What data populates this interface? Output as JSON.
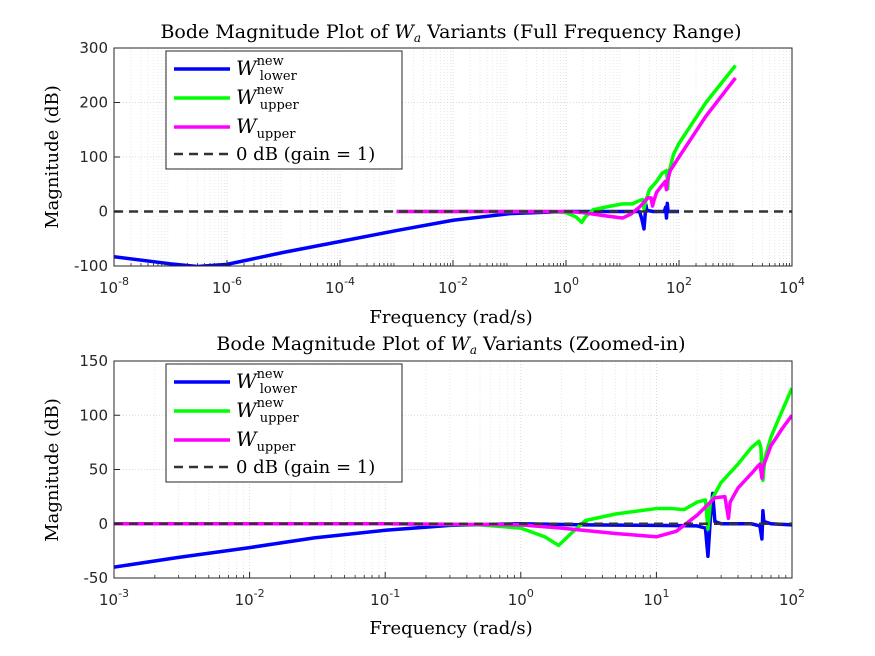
{
  "chart_data": [
    {
      "type": "line",
      "title": "Bode Magnitude Plot of W_a Variants (Full Frequency Range)",
      "title_parts": [
        "Bode Magnitude Plot of ",
        "W",
        "a",
        " Variants (Full Frequency Range)"
      ],
      "xlabel": "Frequency (rad/s)",
      "ylabel": "Magnitude (dB)",
      "xscale": "log",
      "xlim": [
        1e-08,
        10000.0
      ],
      "ylim": [
        -100,
        300
      ],
      "xticks": [
        {
          "v": 1e-08,
          "base": "10",
          "exp": "-8"
        },
        {
          "v": 1e-06,
          "base": "10",
          "exp": "-6"
        },
        {
          "v": 0.0001,
          "base": "10",
          "exp": "-4"
        },
        {
          "v": 0.01,
          "base": "10",
          "exp": "-2"
        },
        {
          "v": 1,
          "base": "10",
          "exp": "0"
        },
        {
          "v": 100,
          "base": "10",
          "exp": "2"
        },
        {
          "v": 10000.0,
          "base": "10",
          "exp": "4"
        }
      ],
      "yticks": [
        {
          "v": -100,
          "label": "-100"
        },
        {
          "v": 0,
          "label": "0"
        },
        {
          "v": 100,
          "label": "100"
        },
        {
          "v": 200,
          "label": "200"
        },
        {
          "v": 300,
          "label": "300"
        }
      ],
      "grid": true,
      "legend_placement": "top-left",
      "series": [
        {
          "name": "W_lower^new",
          "color": "#0000ff",
          "points": [
            [
              1e-08,
              -83
            ],
            [
              1e-07,
              -96
            ],
            [
              3e-07,
              -101
            ],
            [
              1e-06,
              -97
            ],
            [
              1e-05,
              -75
            ],
            [
              0.0001,
              -55
            ],
            [
              0.001,
              -35
            ],
            [
              0.01,
              -16
            ],
            [
              0.1,
              -4
            ],
            [
              1,
              0
            ],
            [
              10,
              0
            ],
            [
              20,
              0
            ],
            [
              22,
              -14
            ],
            [
              24,
              -32
            ],
            [
              25,
              -10
            ],
            [
              26,
              12
            ],
            [
              27,
              2
            ],
            [
              35,
              0
            ],
            [
              55,
              0
            ],
            [
              58,
              8
            ],
            [
              60,
              -12
            ],
            [
              62,
              15
            ],
            [
              64,
              0
            ],
            [
              100,
              0
            ]
          ]
        },
        {
          "name": "W_upper^new",
          "color": "#00ff00",
          "points": [
            [
              0.001,
              0
            ],
            [
              0.01,
              0
            ],
            [
              0.1,
              0
            ],
            [
              0.5,
              0
            ],
            [
              1,
              -2
            ],
            [
              1.5,
              -10
            ],
            [
              1.9,
              -20
            ],
            [
              2.2,
              -10
            ],
            [
              3,
              3
            ],
            [
              5,
              8
            ],
            [
              10,
              14
            ],
            [
              15,
              14
            ],
            [
              20,
              20
            ],
            [
              23,
              22
            ],
            [
              24,
              5
            ],
            [
              26,
              20
            ],
            [
              30,
              40
            ],
            [
              40,
              55
            ],
            [
              50,
              70
            ],
            [
              60,
              75
            ],
            [
              62,
              60
            ],
            [
              63,
              42
            ],
            [
              65,
              68
            ],
            [
              80,
              105
            ],
            [
              100,
              125
            ],
            [
              300,
              200
            ],
            [
              1000,
              268
            ]
          ]
        },
        {
          "name": "W_upper",
          "color": "#ff00ff",
          "points": [
            [
              0.001,
              0
            ],
            [
              0.01,
              0
            ],
            [
              0.1,
              0
            ],
            [
              1,
              0
            ],
            [
              2,
              -2
            ],
            [
              5,
              -8
            ],
            [
              10,
              -12
            ],
            [
              14,
              -5
            ],
            [
              20,
              8
            ],
            [
              28,
              25
            ],
            [
              32,
              25
            ],
            [
              34,
              10
            ],
            [
              36,
              20
            ],
            [
              40,
              35
            ],
            [
              50,
              48
            ],
            [
              57,
              55
            ],
            [
              59,
              45
            ],
            [
              60,
              40
            ],
            [
              62,
              55
            ],
            [
              70,
              75
            ],
            [
              100,
              100
            ],
            [
              300,
              175
            ],
            [
              1000,
              245
            ]
          ]
        },
        {
          "name": "0 dB (gain = 1)",
          "color": "#333333",
          "dashed": true,
          "points": [
            [
              1e-08,
              0
            ],
            [
              10000.0,
              0
            ]
          ]
        }
      ]
    },
    {
      "type": "line",
      "title": "Bode Magnitude Plot of W_a Variants (Zoomed-in)",
      "title_parts": [
        "Bode Magnitude Plot of ",
        "W",
        "a",
        " Variants (Zoomed-in)"
      ],
      "xlabel": "Frequency (rad/s)",
      "ylabel": "Magnitude (dB)",
      "xscale": "log",
      "xlim": [
        0.001,
        100
      ],
      "ylim": [
        -50,
        150
      ],
      "xticks": [
        {
          "v": 0.001,
          "base": "10",
          "exp": "-3"
        },
        {
          "v": 0.01,
          "base": "10",
          "exp": "-2"
        },
        {
          "v": 0.1,
          "base": "10",
          "exp": "-1"
        },
        {
          "v": 1,
          "base": "10",
          "exp": "0"
        },
        {
          "v": 10,
          "base": "10",
          "exp": "1"
        },
        {
          "v": 100,
          "base": "10",
          "exp": "2"
        }
      ],
      "yticks": [
        {
          "v": -50,
          "label": "-50"
        },
        {
          "v": 0,
          "label": "0"
        },
        {
          "v": 50,
          "label": "50"
        },
        {
          "v": 100,
          "label": "100"
        },
        {
          "v": 150,
          "label": "150"
        }
      ],
      "grid": true,
      "legend_placement": "top-left",
      "series": [
        {
          "name": "W_lower^new",
          "color": "#0000ff",
          "points": [
            [
              0.001,
              -40
            ],
            [
              0.003,
              -31
            ],
            [
              0.01,
              -22
            ],
            [
              0.03,
              -13
            ],
            [
              0.1,
              -6
            ],
            [
              0.3,
              -1.5
            ],
            [
              1,
              0
            ],
            [
              3,
              -1
            ],
            [
              10,
              -1.5
            ],
            [
              20,
              -2
            ],
            [
              23,
              -4
            ],
            [
              24,
              -30
            ],
            [
              25,
              5
            ],
            [
              26,
              28
            ],
            [
              27,
              2
            ],
            [
              30,
              0
            ],
            [
              50,
              0
            ],
            [
              58,
              -2
            ],
            [
              60,
              -14
            ],
            [
              61,
              12
            ],
            [
              62,
              2
            ],
            [
              70,
              0
            ],
            [
              100,
              -1
            ]
          ]
        },
        {
          "name": "W_upper^new",
          "color": "#00ff00",
          "points": [
            [
              0.001,
              0
            ],
            [
              0.01,
              0
            ],
            [
              0.1,
              0
            ],
            [
              0.5,
              -1
            ],
            [
              1,
              -4
            ],
            [
              1.5,
              -12
            ],
            [
              1.9,
              -20
            ],
            [
              2.3,
              -10
            ],
            [
              3,
              3
            ],
            [
              5,
              9
            ],
            [
              10,
              14
            ],
            [
              13,
              14
            ],
            [
              16,
              13
            ],
            [
              20,
              20
            ],
            [
              23,
              22
            ],
            [
              24,
              -5
            ],
            [
              25,
              20
            ],
            [
              30,
              38
            ],
            [
              40,
              55
            ],
            [
              50,
              70
            ],
            [
              57,
              76
            ],
            [
              59,
              70
            ],
            [
              60,
              48
            ],
            [
              61,
              40
            ],
            [
              63,
              60
            ],
            [
              70,
              80
            ],
            [
              80,
              97
            ],
            [
              100,
              125
            ]
          ]
        },
        {
          "name": "W_upper",
          "color": "#ff00ff",
          "points": [
            [
              0.001,
              0
            ],
            [
              0.01,
              0
            ],
            [
              0.1,
              0
            ],
            [
              1,
              -1
            ],
            [
              2,
              -4
            ],
            [
              5,
              -9
            ],
            [
              10,
              -12
            ],
            [
              14,
              -7
            ],
            [
              20,
              8
            ],
            [
              27,
              24
            ],
            [
              32,
              25
            ],
            [
              34,
              5
            ],
            [
              35,
              20
            ],
            [
              40,
              33
            ],
            [
              50,
              46
            ],
            [
              55,
              52
            ],
            [
              58,
              55
            ],
            [
              60,
              42
            ],
            [
              61,
              52
            ],
            [
              70,
              72
            ],
            [
              85,
              88
            ],
            [
              100,
              100
            ]
          ]
        },
        {
          "name": "0 dB (gain = 1)",
          "color": "#333333",
          "dashed": true,
          "points": [
            [
              0.001,
              0
            ],
            [
              100,
              0
            ]
          ]
        }
      ]
    }
  ],
  "legend_labels": [
    {
      "base": "W",
      "sup": "new",
      "sub": "lower"
    },
    {
      "base": "W",
      "sup": "new",
      "sub": "upper"
    },
    {
      "base": "W",
      "sup": "",
      "sub": "upper"
    },
    {
      "base": "0 dB (gain = 1)",
      "sup": "",
      "sub": ""
    }
  ]
}
